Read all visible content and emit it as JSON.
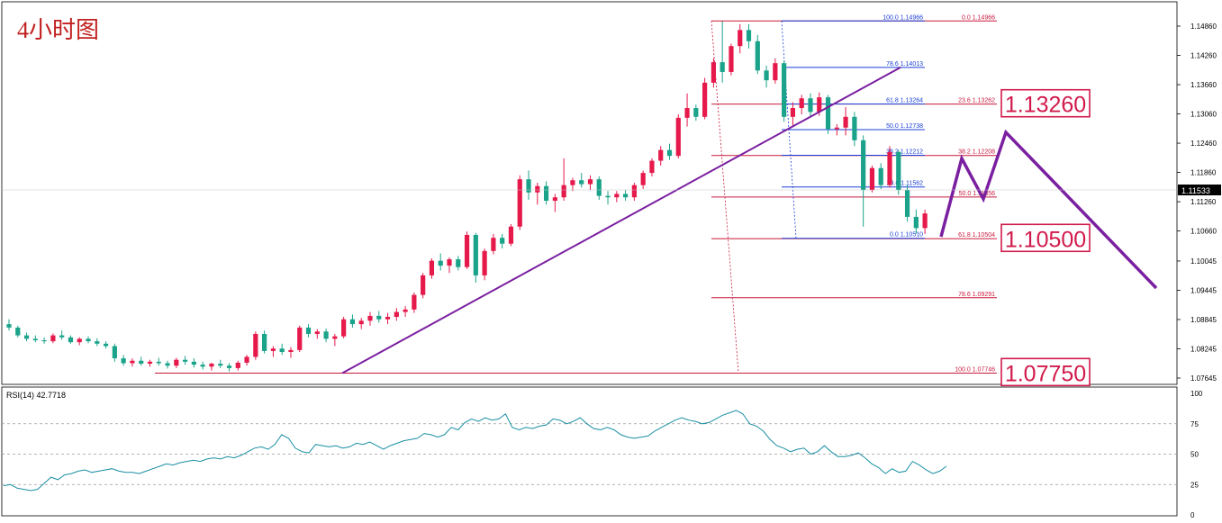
{
  "title": "4小时图",
  "current_price": "1.11533",
  "rsi_label": "RSI(14) 42.7718",
  "colors": {
    "bull": "#e6194b",
    "bear": "#1aa38a",
    "fib_red": "#c8193c",
    "fib_blue": "#1a3fd6",
    "trend": "#7a1fa0",
    "rsi": "#1a8fa3",
    "price_box": "#d11a4b",
    "title": "#c0201e"
  },
  "chart_data": {
    "type": "candlestick",
    "timeframe": "4小时图",
    "price_axis": {
      "range": [
        1.07645,
        1.14966
      ],
      "ticks": [
        "1.14860",
        "1.14260",
        "1.13660",
        "1.13060",
        "1.12460",
        "1.11860",
        "1.11260",
        "1.10660",
        "1.10045",
        "1.09445",
        "1.08845",
        "1.08245",
        "1.07645"
      ]
    },
    "candles_ohlc_approx": [
      [
        1.0875,
        1.0885,
        1.0862,
        1.0868
      ],
      [
        1.0868,
        1.0872,
        1.0848,
        1.0852
      ],
      [
        1.0852,
        1.0858,
        1.084,
        1.0845
      ],
      [
        1.0845,
        1.0852,
        1.0838,
        1.0842
      ],
      [
        1.0842,
        1.0848,
        1.0835,
        1.084
      ],
      [
        1.084,
        1.0856,
        1.0836,
        1.0852
      ],
      [
        1.0852,
        1.0862,
        1.0843,
        1.0848
      ],
      [
        1.0848,
        1.0852,
        1.0835,
        1.0838
      ],
      [
        1.0838,
        1.0848,
        1.0832,
        1.0845
      ],
      [
        1.0845,
        1.085,
        1.0836,
        1.084
      ],
      [
        1.084,
        1.0846,
        1.083,
        1.0835
      ],
      [
        1.0835,
        1.084,
        1.0825,
        1.083
      ],
      [
        1.083,
        1.0835,
        1.0798,
        1.0805
      ],
      [
        1.0805,
        1.0812,
        1.079,
        1.0795
      ],
      [
        1.0795,
        1.0805,
        1.0788,
        1.08
      ],
      [
        1.08,
        1.0808,
        1.079,
        1.0794
      ],
      [
        1.0794,
        1.0802,
        1.0788,
        1.0798
      ],
      [
        1.0798,
        1.0806,
        1.079,
        1.0795
      ],
      [
        1.0795,
        1.08,
        1.0784,
        1.079
      ],
      [
        1.079,
        1.0806,
        1.0785,
        1.0802
      ],
      [
        1.0802,
        1.081,
        1.0792,
        1.0798
      ],
      [
        1.0798,
        1.0805,
        1.0786,
        1.0792
      ],
      [
        1.0792,
        1.0798,
        1.0782,
        1.0788
      ],
      [
        1.0788,
        1.0796,
        1.078,
        1.0794
      ],
      [
        1.0794,
        1.0802,
        1.0785,
        1.079
      ],
      [
        1.079,
        1.0795,
        1.0778,
        1.0785
      ],
      [
        1.0785,
        1.08,
        1.078,
        1.0796
      ],
      [
        1.0796,
        1.0812,
        1.079,
        1.0808
      ],
      [
        1.0808,
        1.086,
        1.0802,
        1.0855
      ],
      [
        1.0855,
        1.0862,
        1.0815,
        1.082
      ],
      [
        1.082,
        1.083,
        1.0808,
        1.0825
      ],
      [
        1.0825,
        1.0835,
        1.0812,
        1.0818
      ],
      [
        1.0818,
        1.0828,
        1.0806,
        1.0822
      ],
      [
        1.0822,
        1.0872,
        1.0818,
        1.0868
      ],
      [
        1.0868,
        1.0875,
        1.0848,
        1.0855
      ],
      [
        1.0855,
        1.0865,
        1.0845,
        1.086
      ],
      [
        1.086,
        1.0866,
        1.0838,
        1.0845
      ],
      [
        1.0845,
        1.0855,
        1.083,
        1.085
      ],
      [
        1.085,
        1.089,
        1.0846,
        1.0885
      ],
      [
        1.0885,
        1.0895,
        1.0868,
        1.0875
      ],
      [
        1.0875,
        1.0888,
        1.0865,
        1.0882
      ],
      [
        1.0882,
        1.09,
        1.0872,
        1.0892
      ],
      [
        1.0892,
        1.0902,
        1.0878,
        1.0885
      ],
      [
        1.0885,
        1.0898,
        1.0875,
        1.089
      ],
      [
        1.089,
        1.0908,
        1.0882,
        1.09
      ],
      [
        1.09,
        1.0912,
        1.089,
        1.0905
      ],
      [
        1.0905,
        1.094,
        1.0898,
        1.0935
      ],
      [
        1.0935,
        1.098,
        1.0928,
        1.0975
      ],
      [
        1.0975,
        1.101,
        1.0968,
        1.1005
      ],
      [
        1.1005,
        1.102,
        1.0985,
        1.0995
      ],
      [
        1.0995,
        1.1012,
        1.098,
        1.1008
      ],
      [
        1.1008,
        1.1015,
        1.0985,
        1.0992
      ],
      [
        1.0992,
        1.1065,
        1.0988,
        1.1058
      ],
      [
        1.1058,
        1.1062,
        1.096,
        1.0975
      ],
      [
        1.0975,
        1.103,
        1.0965,
        1.1025
      ],
      [
        1.1025,
        1.106,
        1.1018,
        1.1052
      ],
      [
        1.1052,
        1.106,
        1.103,
        1.104
      ],
      [
        1.104,
        1.108,
        1.1035,
        1.1075
      ],
      [
        1.1075,
        1.118,
        1.1068,
        1.1172
      ],
      [
        1.1172,
        1.119,
        1.113,
        1.1145
      ],
      [
        1.1145,
        1.1165,
        1.112,
        1.1158
      ],
      [
        1.1158,
        1.1168,
        1.112,
        1.1128
      ],
      [
        1.1128,
        1.1142,
        1.1105,
        1.1135
      ],
      [
        1.1135,
        1.1215,
        1.1128,
        1.116
      ],
      [
        1.116,
        1.1175,
        1.1148,
        1.117
      ],
      [
        1.117,
        1.1185,
        1.1155,
        1.1162
      ],
      [
        1.1162,
        1.118,
        1.115,
        1.1172
      ],
      [
        1.1172,
        1.1178,
        1.113,
        1.1138
      ],
      [
        1.1138,
        1.1148,
        1.112,
        1.1135
      ],
      [
        1.1135,
        1.1148,
        1.1125,
        1.1142
      ],
      [
        1.1142,
        1.115,
        1.1128,
        1.1135
      ],
      [
        1.1135,
        1.1165,
        1.1128,
        1.116
      ],
      [
        1.116,
        1.119,
        1.1152,
        1.1185
      ],
      [
        1.1185,
        1.1215,
        1.1178,
        1.121
      ],
      [
        1.121,
        1.124,
        1.12,
        1.1232
      ],
      [
        1.1232,
        1.1245,
        1.1212,
        1.122
      ],
      [
        1.122,
        1.1305,
        1.1215,
        1.1298
      ],
      [
        1.1298,
        1.1348,
        1.128,
        1.1318
      ],
      [
        1.1318,
        1.1325,
        1.1292,
        1.13
      ],
      [
        1.13,
        1.138,
        1.1295,
        1.137
      ],
      [
        1.137,
        1.142,
        1.136,
        1.1412
      ],
      [
        1.1412,
        1.1496,
        1.137,
        1.1392
      ],
      [
        1.1392,
        1.145,
        1.1385,
        1.1445
      ],
      [
        1.1445,
        1.149,
        1.143,
        1.1478
      ],
      [
        1.1478,
        1.149,
        1.144,
        1.1455
      ],
      [
        1.1455,
        1.1468,
        1.1388,
        1.1395
      ],
      [
        1.1395,
        1.1405,
        1.136,
        1.1375
      ],
      [
        1.1375,
        1.142,
        1.1368,
        1.141
      ],
      [
        1.141,
        1.1415,
        1.129,
        1.13
      ],
      [
        1.13,
        1.133,
        1.128,
        1.1318
      ],
      [
        1.1318,
        1.1345,
        1.1305,
        1.1338
      ],
      [
        1.1338,
        1.1348,
        1.13,
        1.131
      ],
      [
        1.131,
        1.135,
        1.1302,
        1.134
      ],
      [
        1.134,
        1.1345,
        1.1265,
        1.1275
      ],
      [
        1.1275,
        1.1285,
        1.1262,
        1.1278
      ],
      [
        1.1278,
        1.132,
        1.1262,
        1.13
      ],
      [
        1.13,
        1.131,
        1.124,
        1.1252
      ],
      [
        1.1252,
        1.1262,
        1.1075,
        1.115
      ],
      [
        1.115,
        1.12,
        1.1145,
        1.1195
      ],
      [
        1.1195,
        1.1205,
        1.1152,
        1.116
      ],
      [
        1.116,
        1.124,
        1.1155,
        1.1228
      ],
      [
        1.1228,
        1.1232,
        1.114,
        1.115
      ],
      [
        1.115,
        1.116,
        1.1085,
        1.1095
      ],
      [
        1.1095,
        1.111,
        1.106,
        1.1072
      ],
      [
        1.1072,
        1.111,
        1.106,
        1.1102
      ]
    ],
    "fib_red": [
      {
        "label": "0.0 1.14966",
        "value": 1.14966
      },
      {
        "label": "23.6 1.13262",
        "value": 1.13262
      },
      {
        "label": "38.2 1.12208",
        "value": 1.12208
      },
      {
        "label": "50.0 1.11356",
        "value": 1.11356
      },
      {
        "label": "61.8 1.10504",
        "value": 1.10504
      },
      {
        "label": "78.6 1.09291",
        "value": 1.09291
      },
      {
        "label": "100.0 1.07746",
        "value": 1.07746
      }
    ],
    "fib_blue": [
      {
        "label": "100.0 1.14966",
        "value": 1.14966
      },
      {
        "label": "78.6 1.14013",
        "value": 1.14013
      },
      {
        "label": "61.8 1.13264",
        "value": 1.13264
      },
      {
        "label": "50.0 1.12738",
        "value": 1.12738
      },
      {
        "label": "38.2 1.12212",
        "value": 1.12212
      },
      {
        "label": "23.6 1.11562",
        "value": 1.11562
      },
      {
        "label": "0.0 1.10510",
        "value": 1.1051
      }
    ],
    "key_levels": [
      {
        "label": "1.13260",
        "value": 1.1326
      },
      {
        "label": "1.10500",
        "value": 1.105
      },
      {
        "label": "1.07750",
        "value": 1.0775
      }
    ],
    "rsi": {
      "label": "RSI(14) 42.7718",
      "value": 42.7718,
      "range": [
        0,
        100
      ],
      "ticks": [
        "100",
        "75",
        "50",
        "25",
        "0"
      ],
      "levels": [
        75,
        50,
        25
      ],
      "series": [
        24,
        25,
        22,
        21,
        20,
        21,
        26,
        31,
        29,
        33,
        34,
        36,
        37,
        35,
        36,
        37,
        38,
        36,
        35,
        35,
        34,
        36,
        38,
        40,
        42,
        41,
        43,
        44,
        45,
        44,
        46,
        47,
        46,
        48,
        47,
        49,
        52,
        55,
        56,
        54,
        58,
        66,
        63,
        55,
        52,
        51,
        58,
        57,
        56,
        57,
        55,
        56,
        59,
        58,
        60,
        57,
        54,
        57,
        59,
        61,
        62,
        63,
        67,
        66,
        64,
        66,
        72,
        70,
        76,
        79,
        77,
        80,
        78,
        79,
        83,
        72,
        70,
        72,
        71,
        73,
        74,
        79,
        78,
        75,
        77,
        80,
        75,
        71,
        70,
        72,
        70,
        66,
        64,
        63,
        64,
        65,
        69,
        72,
        75,
        78,
        80,
        78,
        77,
        75,
        76,
        79,
        82,
        84,
        86,
        83,
        75,
        73,
        69,
        62,
        57,
        55,
        52,
        54,
        55,
        50,
        52,
        57,
        52,
        48,
        48,
        49,
        51,
        47,
        42,
        39,
        34,
        38,
        35,
        36,
        44,
        41,
        37,
        34,
        36,
        40
      ]
    }
  }
}
